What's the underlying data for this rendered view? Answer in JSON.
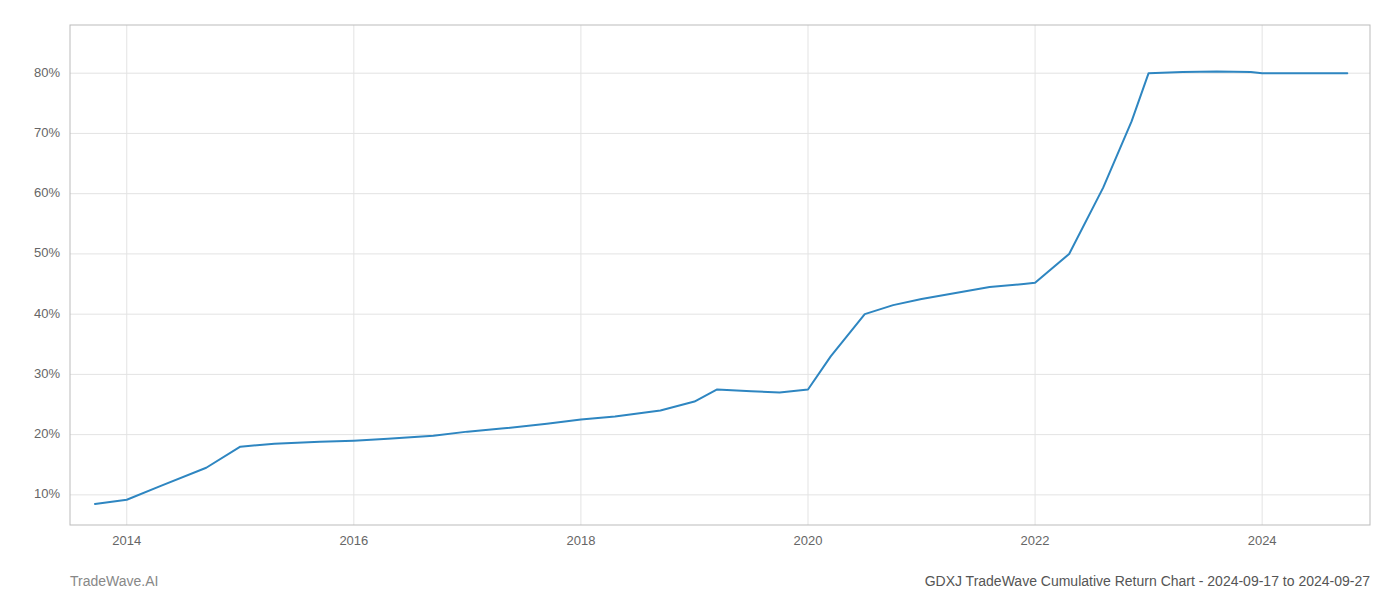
{
  "chart_data": {
    "type": "line",
    "title": "GDXJ TradeWave Cumulative Return Chart - 2024-09-17 to 2024-09-27",
    "annotations": [
      "TradeWave.AI"
    ],
    "x": [
      2013.72,
      2014.0,
      2014.3,
      2014.7,
      2015.0,
      2015.3,
      2015.7,
      2016.0,
      2016.3,
      2016.7,
      2017.0,
      2017.3,
      2017.7,
      2018.0,
      2018.3,
      2018.7,
      2019.0,
      2019.2,
      2019.5,
      2019.75,
      2020.0,
      2020.2,
      2020.5,
      2020.75,
      2021.0,
      2021.3,
      2021.6,
      2021.9,
      2022.0,
      2022.3,
      2022.6,
      2022.85,
      2023.0,
      2023.3,
      2023.6,
      2023.9,
      2024.0,
      2024.3,
      2024.6,
      2024.75
    ],
    "values": [
      8.5,
      9.2,
      11.5,
      14.5,
      18.0,
      18.5,
      18.8,
      19.0,
      19.3,
      19.8,
      20.5,
      21.0,
      21.8,
      22.5,
      23.0,
      24.0,
      25.5,
      27.5,
      27.2,
      27.0,
      27.5,
      33.0,
      40.0,
      41.5,
      42.5,
      43.5,
      44.5,
      45.0,
      45.2,
      50.0,
      61.0,
      72.0,
      80.0,
      80.2,
      80.3,
      80.2,
      80.0,
      80.0,
      80.0,
      80.0
    ],
    "color": "#2e86c1",
    "xlim": [
      2013.5,
      2024.95
    ],
    "ylim": [
      5,
      88
    ],
    "xticks": [
      2014,
      2016,
      2018,
      2020,
      2022,
      2024
    ],
    "yticks": [
      {
        "value": 10,
        "label": "10%"
      },
      {
        "value": 20,
        "label": "20%"
      },
      {
        "value": 30,
        "label": "30%"
      },
      {
        "value": 40,
        "label": "40%"
      },
      {
        "value": 50,
        "label": "50%"
      },
      {
        "value": 60,
        "label": "60%"
      },
      {
        "value": 70,
        "label": "70%"
      },
      {
        "value": 80,
        "label": "80%"
      }
    ],
    "grid": true
  }
}
